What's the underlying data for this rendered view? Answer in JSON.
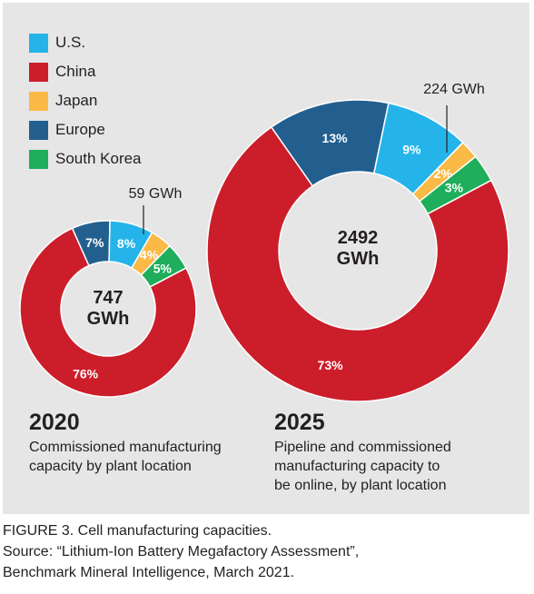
{
  "legend": [
    {
      "label": "U.S.",
      "color": "#25b4e9"
    },
    {
      "label": "China",
      "color": "#cc1d2b"
    },
    {
      "label": "Japan",
      "color": "#fbb945"
    },
    {
      "label": "Europe",
      "color": "#225f8e"
    },
    {
      "label": "South Korea",
      "color": "#1fae5b"
    }
  ],
  "chart_data": [
    {
      "type": "pie",
      "year": "2020",
      "center_value": "747",
      "center_unit": "GWh",
      "callout": "59 GWh",
      "description": [
        "Commissioned manufacturing",
        "capacity by plant location"
      ],
      "slices": [
        {
          "name": "Europe",
          "value": 7,
          "label": "7%"
        },
        {
          "name": "U.S.",
          "value": 8,
          "label": "8%"
        },
        {
          "name": "Japan",
          "value": 4,
          "label": "4%"
        },
        {
          "name": "South Korea",
          "value": 5,
          "label": "5%"
        },
        {
          "name": "China",
          "value": 76,
          "label": "76%"
        }
      ]
    },
    {
      "type": "pie",
      "year": "2025",
      "center_value": "2492",
      "center_unit": "GWh",
      "callout": "224 GWh",
      "description": [
        "Pipeline and commissioned",
        "manufacturing capacity to",
        "be online, by plant location"
      ],
      "slices": [
        {
          "name": "Europe",
          "value": 13,
          "label": "13%"
        },
        {
          "name": "U.S.",
          "value": 9,
          "label": "9%"
        },
        {
          "name": "Japan",
          "value": 2,
          "label": "2%"
        },
        {
          "name": "South Korea",
          "value": 3,
          "label": "3%"
        },
        {
          "name": "China",
          "value": 73,
          "label": "73%"
        }
      ]
    }
  ],
  "caption": {
    "line1": "FIGURE 3. Cell manufacturing capacities.",
    "line2": "Source: “Lithium-Ion Battery Megafactory Assessment”,",
    "line3": "Benchmark Mineral Intelligence, March 2021."
  }
}
